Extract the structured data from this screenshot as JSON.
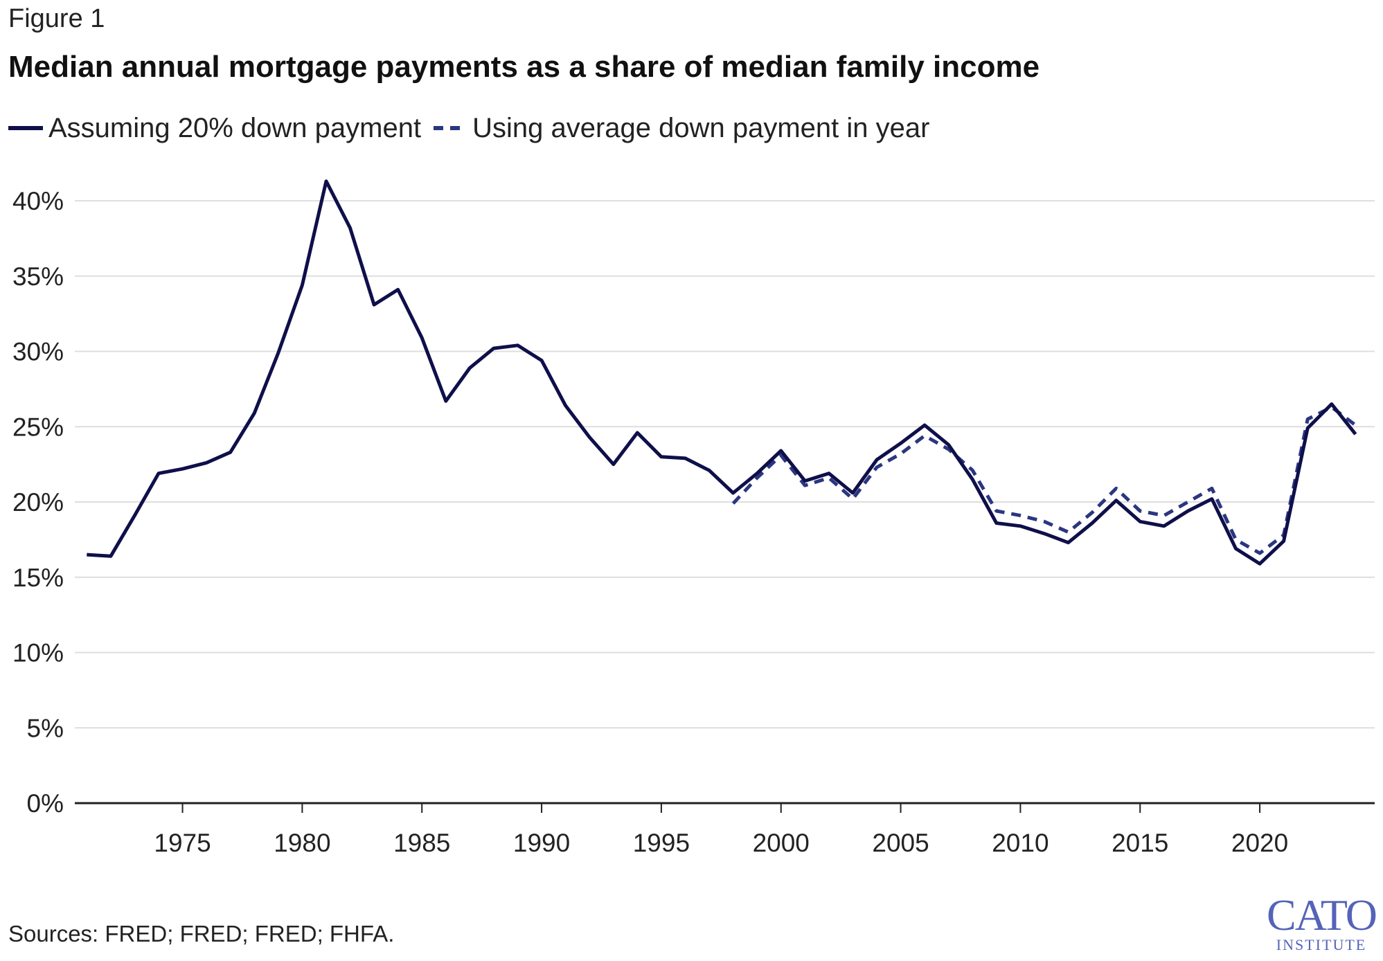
{
  "figure_label": "Figure 1",
  "source": "Sources: FRED; FRED; FRED; FHFA.",
  "logo": {
    "main": "CATO",
    "sub": "INSTITUTE"
  },
  "colors": {
    "series1": "#0f0f4a",
    "series2": "#2b3680",
    "grid": "#dedede",
    "axis": "#222222",
    "logo": "#5563b8"
  },
  "chart_data": {
    "type": "line",
    "title": "Median annual mortgage payments as a share of median family income",
    "xlabel": "",
    "ylabel": "",
    "xlim": [
      1970.5,
      2024.8
    ],
    "ylim": [
      0,
      40
    ],
    "yticks": [
      0,
      5,
      10,
      15,
      20,
      25,
      30,
      35,
      40
    ],
    "ytick_labels": [
      "0%",
      "5%",
      "10%",
      "15%",
      "20%",
      "25%",
      "30%",
      "35%",
      "40%"
    ],
    "xticks": [
      1975,
      1980,
      1985,
      1990,
      1995,
      2000,
      2005,
      2010,
      2015,
      2020
    ],
    "xtick_labels": [
      "1975",
      "1980",
      "1985",
      "1990",
      "1995",
      "2000",
      "2005",
      "2010",
      "2015",
      "2020"
    ],
    "grid": true,
    "legend_position": "top-left",
    "series": [
      {
        "name": "Assuming 20% down payment",
        "style": "solid",
        "x": [
          1971,
          1972,
          1973,
          1974,
          1975,
          1976,
          1977,
          1978,
          1979,
          1980,
          1981,
          1982,
          1983,
          1984,
          1985,
          1986,
          1987,
          1988,
          1989,
          1990,
          1991,
          1992,
          1993,
          1994,
          1995,
          1996,
          1997,
          1998,
          1999,
          2000,
          2001,
          2002,
          2003,
          2004,
          2005,
          2006,
          2007,
          2008,
          2009,
          2010,
          2011,
          2012,
          2013,
          2014,
          2015,
          2016,
          2017,
          2018,
          2019,
          2020,
          2021,
          2022,
          2023,
          2024
        ],
        "values": [
          16.5,
          16.4,
          19.1,
          21.9,
          22.2,
          22.6,
          23.3,
          25.9,
          29.9,
          34.4,
          41.3,
          38.2,
          33.1,
          34.1,
          30.9,
          26.7,
          28.9,
          30.2,
          30.4,
          29.4,
          26.4,
          24.3,
          22.5,
          24.6,
          23.0,
          22.9,
          22.1,
          20.6,
          21.9,
          23.4,
          21.4,
          21.9,
          20.6,
          22.8,
          23.9,
          25.1,
          23.8,
          21.5,
          18.6,
          18.4,
          17.9,
          17.3,
          18.6,
          20.1,
          18.7,
          18.4,
          19.4,
          20.2,
          16.9,
          15.9,
          17.4,
          24.9,
          26.5,
          24.5
        ]
      },
      {
        "name": "Using average down payment in year",
        "style": "dashed",
        "x": [
          1998,
          1999,
          2000,
          2001,
          2002,
          2003,
          2004,
          2005,
          2006,
          2007,
          2008,
          2009,
          2010,
          2011,
          2012,
          2013,
          2014,
          2015,
          2016,
          2017,
          2018,
          2019,
          2020,
          2021,
          2022,
          2023,
          2024
        ],
        "values": [
          19.9,
          21.6,
          23.1,
          21.1,
          21.6,
          20.2,
          22.3,
          23.2,
          24.4,
          23.5,
          22.1,
          19.4,
          19.1,
          18.7,
          18.0,
          19.3,
          20.9,
          19.4,
          19.1,
          20.0,
          20.9,
          17.5,
          16.6,
          17.8,
          25.5,
          26.3,
          25.1
        ]
      }
    ]
  }
}
